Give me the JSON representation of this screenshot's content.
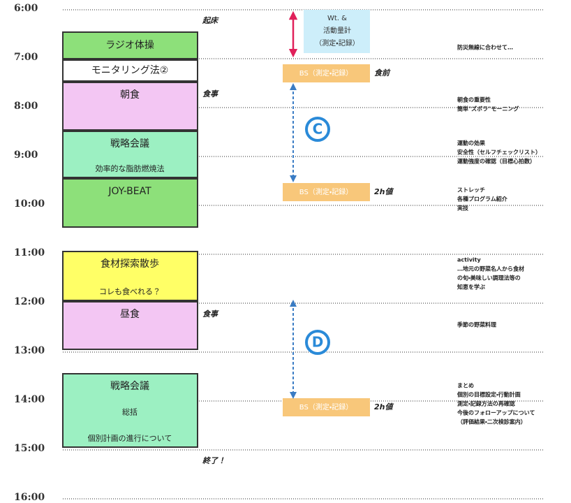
{
  "times": [
    "6:00",
    "7:00",
    "8:00",
    "9:00",
    "10:00",
    "11:00",
    "12:00",
    "13:00",
    "14:00",
    "15:00",
    "16:00"
  ],
  "blocks": [
    {
      "lines": [
        "ラジオ体操"
      ]
    },
    {
      "lines": [
        "モニタリング法②"
      ]
    },
    {
      "lines": [
        "朝食"
      ]
    },
    {
      "lines": [
        "戦略会議",
        "効率的な脂肪燃焼法"
      ]
    },
    {
      "lines": [
        "JOY-BEAT"
      ]
    },
    {
      "lines": [
        "食材探索散歩",
        "コレも食べれる？"
      ]
    },
    {
      "lines": [
        "昼食"
      ]
    },
    {
      "lines": [
        "戦略会議",
        "総括",
        "個別計画の進行について"
      ]
    }
  ],
  "events": [
    "起床",
    "食事",
    "食事",
    "終了！"
  ],
  "measurements": {
    "weight": [
      "Wt. &",
      "活動量計",
      "（測定・記録）"
    ],
    "bs": [
      "BS（測定・記録）",
      "BS（測定・記録）",
      "BS（測定・記録）"
    ],
    "bs_timing": [
      "食前",
      "2h値",
      "2h値"
    ],
    "markers": [
      "C",
      "D"
    ]
  },
  "notes": [
    [
      "防災無線に合わせて…"
    ],
    [
      "朝食の重要性",
      "簡単\"ズボラ\"モーニング"
    ],
    [
      "運動の効果",
      "安全性（セルフチェックリスト）",
      "運動強度の確認（目標心拍数）"
    ],
    [
      "ストレッチ",
      "各種プログラム紹介",
      "実技"
    ],
    [
      "activity",
      "…地元の野菜名人から食材",
      "の旬・美味しい調理法等の",
      "知恵を学ぶ"
    ],
    [
      "季節の野菜料理"
    ],
    [
      "まとめ",
      "個別の目標設定・行動計画",
      "測定・記録方法の再確認",
      "今後のフォローアップについて",
      "（評価結果・二次検診案内）"
    ]
  ]
}
